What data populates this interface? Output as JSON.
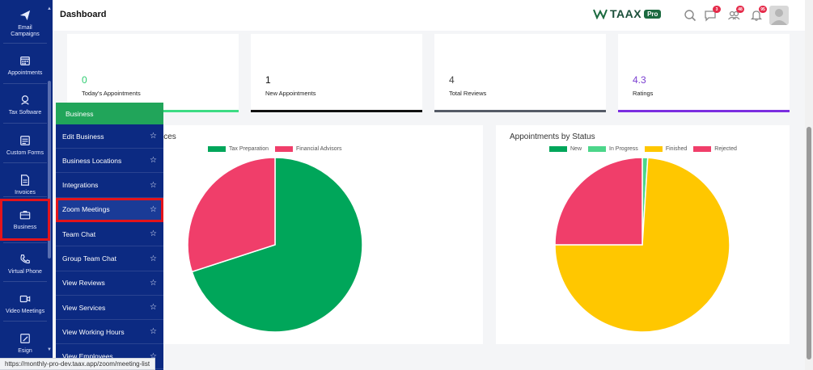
{
  "sidebar": {
    "items": [
      {
        "label": "Email\nCampaigns",
        "icon": "send-icon"
      },
      {
        "label": "Appointments",
        "icon": "calendar-icon"
      },
      {
        "label": "Tax Software",
        "icon": "tax-icon"
      },
      {
        "label": "Custom Forms",
        "icon": "form-icon"
      },
      {
        "label": "Invoices",
        "icon": "invoice-icon"
      },
      {
        "label": "Business",
        "icon": "briefcase-icon"
      },
      {
        "label": "Virtual Phone",
        "icon": "phone-icon"
      },
      {
        "label": "Video Meetings",
        "icon": "video-icon"
      },
      {
        "label": "Esign",
        "icon": "esign-icon"
      }
    ]
  },
  "header": {
    "title": "Dashboard",
    "brand": "TAAX",
    "brand_badge": "Pro",
    "badges": {
      "chat": "3",
      "users": "48",
      "bell": "95"
    }
  },
  "stats": [
    {
      "value": "0",
      "label": "Today's Appointments",
      "color": "#2ecc71",
      "bar": "#3ddc84"
    },
    {
      "value": "1",
      "label": "New Appointments",
      "color": "#111111",
      "bar": "#111111"
    },
    {
      "value": "4",
      "label": "Total Reviews",
      "color": "#444444",
      "bar": "#555b66"
    },
    {
      "value": "4.3",
      "label": "Ratings",
      "color": "#7b3fd1",
      "bar": "#7b2ee0"
    }
  ],
  "charts": {
    "services": {
      "title_fragment": "ices"
    },
    "status": {
      "title": "Appointments by Status"
    }
  },
  "chart_data": [
    {
      "type": "pie",
      "title": "",
      "categories": [
        "Tax Preparation",
        "Financial Advisors"
      ],
      "values": [
        70,
        30
      ],
      "colors": [
        "#00a65a",
        "#f03e6a"
      ],
      "legend": "top"
    },
    {
      "type": "pie",
      "title": "Appointments by Status",
      "categories": [
        "New",
        "In Progress",
        "Finished",
        "Rejected"
      ],
      "values": [
        0,
        1,
        74,
        25
      ],
      "colors": [
        "#00a65a",
        "#4cd68a",
        "#ffc700",
        "#f03e6a"
      ],
      "legend": "top"
    }
  ],
  "menu": {
    "header": "Business",
    "items": [
      "Edit Business",
      "Business Locations",
      "Integrations",
      "Zoom Meetings",
      "Team Chat",
      "Group Team Chat",
      "View Reviews",
      "View Services",
      "View Working Hours",
      "View Employees"
    ],
    "highlighted": 3
  },
  "status_bar": {
    "url": "https://monthly-pro-dev.taax.app/zoom/meeting-list"
  }
}
